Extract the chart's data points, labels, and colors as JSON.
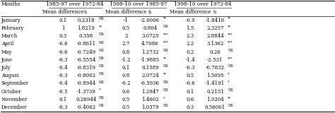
{
  "months": [
    "January",
    "February",
    "March",
    "April",
    "May",
    "June",
    "July",
    "August",
    "September",
    "October",
    "November",
    "December"
  ],
  "col1_md": [
    "0.1",
    "1",
    "0.3",
    "-0.6",
    "-0.6",
    "-0.3",
    "-0.4",
    "-0.3",
    "-0.4",
    "-0.5",
    "0.1",
    "-0.3"
  ],
  "col1_t": [
    "0.2318NS",
    "1.8219**",
    "0.358NS",
    "-0.8611NS",
    "-0.7249NS",
    "-0.5554NS",
    "-0.8319NS",
    "-0.8002NS",
    "-0.8944NS",
    "-1.3739*",
    "0.26944NS",
    "-0.4062NS"
  ],
  "col1_t_sup": [
    "NS",
    "**",
    "NS",
    "NS",
    "NS",
    "NS",
    "NS",
    "NS",
    "NS",
    "*",
    "NS",
    "NS"
  ],
  "col1_t_base": [
    "0.2318",
    "1.8219",
    "0.358",
    "-0.8611",
    "-0.7249",
    "-0.5554",
    "-0.8319",
    "-0.8002",
    "-0.8944",
    "-1.3739",
    "0.26944",
    "-0.4062"
  ],
  "col2_md": [
    "-1",
    "0.5",
    "2",
    "2.7",
    "0.8",
    "-1.2",
    "0.1",
    "0.8",
    "-0.2",
    "0.6",
    "0.5",
    "0.5"
  ],
  "col2_t_base": [
    "-2.0006",
    "0.804",
    "3.0725",
    "4.7086",
    "1.2732",
    "-1.9885",
    "0.1589",
    "2.0724",
    "-0.5936",
    "1.2947",
    "1.4602",
    "1.0379"
  ],
  "col2_t_sup": [
    "**",
    "NS",
    "***",
    "***",
    "NS",
    "**",
    "NS",
    "**",
    "NS",
    "NS",
    "*",
    "NS"
  ],
  "col3_md": [
    "-0.9",
    "1.5",
    "2.3",
    "2.2",
    "0.2",
    "-1.4",
    "-0.3",
    "0.5",
    "-0.6",
    "0.1",
    "0.6",
    "0.3"
  ],
  "col3_t_base": [
    "-1.8416",
    "2.3257",
    "2.8844",
    "3.1362",
    "0.26",
    "-2.531",
    "-0.7832",
    "1.5095",
    "-1.4191",
    "0.2151",
    "1.9204",
    "0.56001"
  ],
  "col3_t_sup": [
    "**",
    "**",
    "***",
    "***",
    "NS",
    "***",
    "NS",
    "*",
    "*",
    "NS",
    "**",
    "NS"
  ],
  "font_size": 5.0,
  "header_font_size": 5.2,
  "bg_color": "#ffffff",
  "text_color": "#000000",
  "line_color": "#000000"
}
